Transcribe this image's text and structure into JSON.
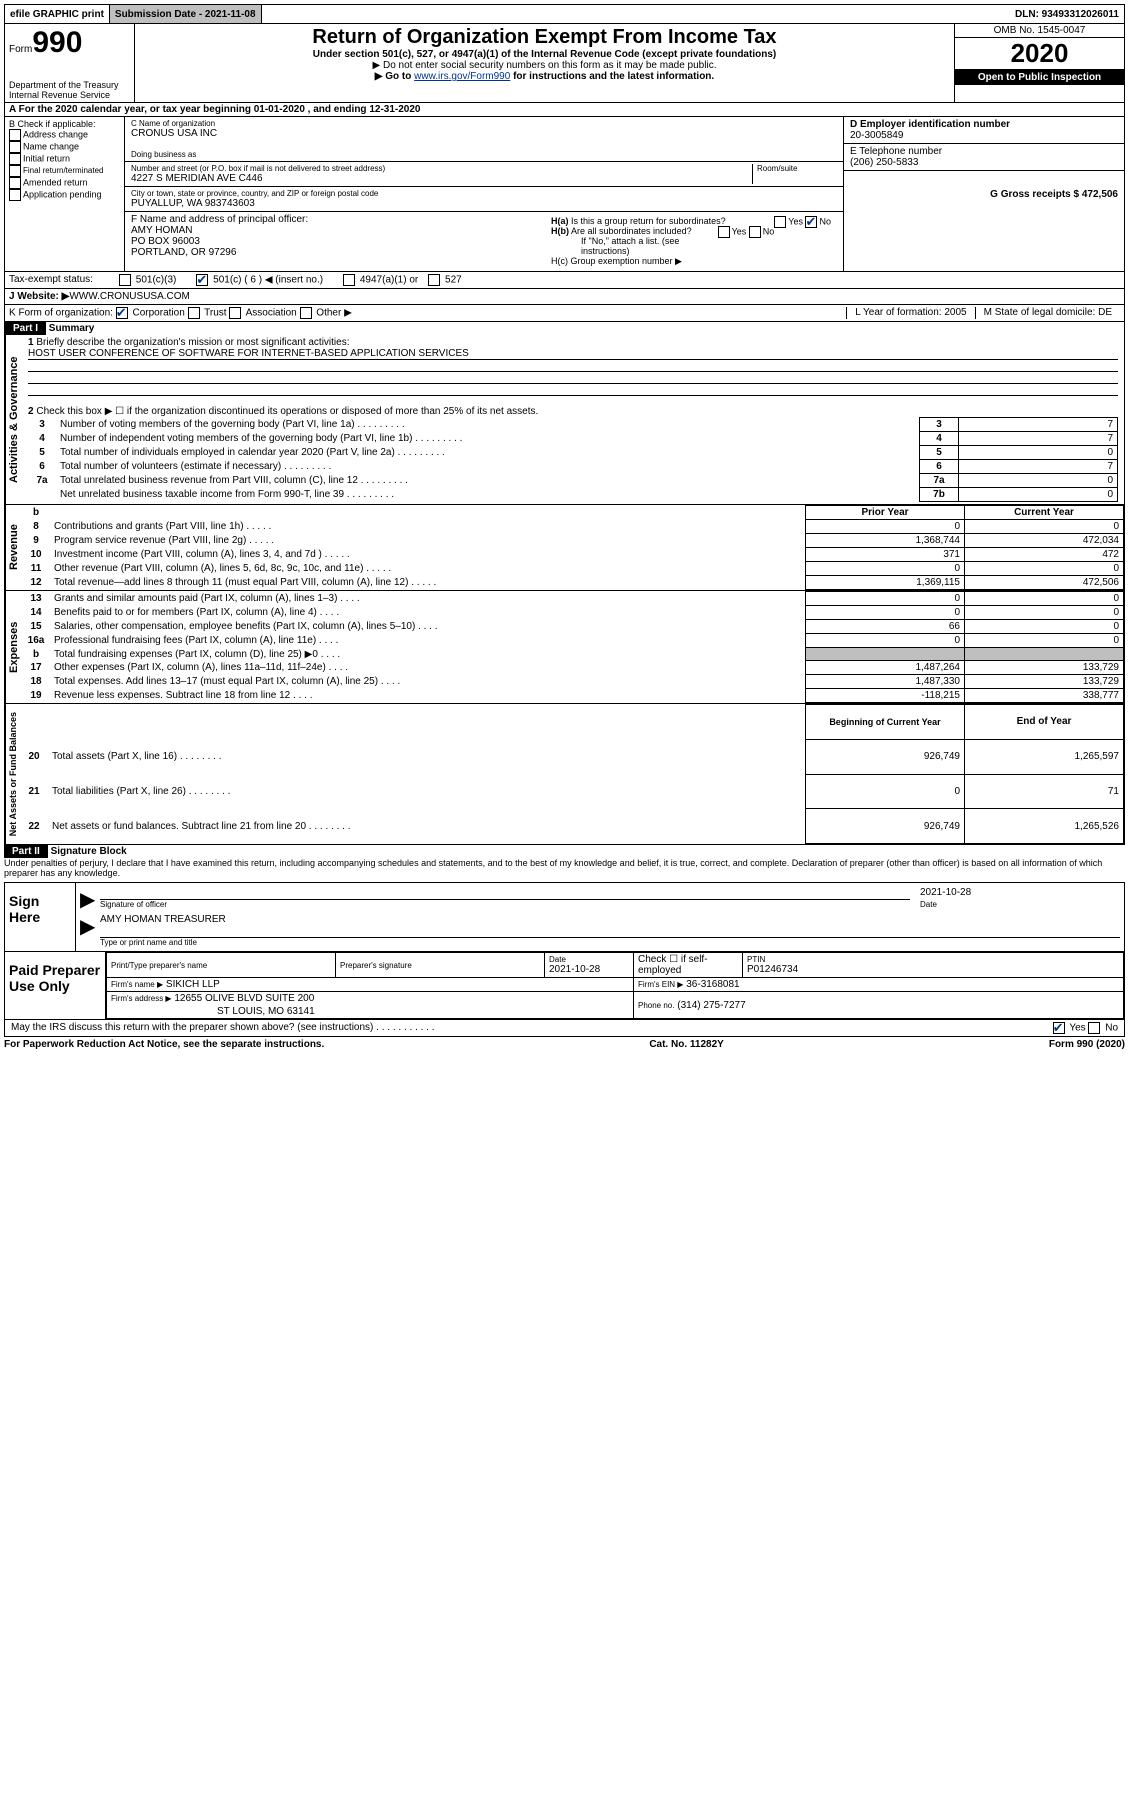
{
  "top_bar": {
    "efile": "efile GRAPHIC print",
    "sub_label": "Submission Date - 2021-11-08",
    "dln": "DLN: 93493312026011"
  },
  "header": {
    "form_label": "Form",
    "form_number": "990",
    "dept1": "Department of the Treasury",
    "dept2": "Internal Revenue Service",
    "title": "Return of Organization Exempt From Income Tax",
    "subtitle": "Under section 501(c), 527, or 4947(a)(1) of the Internal Revenue Code (except private foundations)",
    "note1": "▶ Do not enter social security numbers on this form as it may be made public.",
    "note2_pre": "▶ Go to ",
    "note2_link": "www.irs.gov/Form990",
    "note2_post": " for instructions and the latest information.",
    "omb": "OMB No. 1545-0047",
    "year": "2020",
    "open": "Open to Public Inspection"
  },
  "row_a": "A For the 2020 calendar year, or tax year beginning 01-01-2020    , and ending 12-31-2020",
  "col_b": {
    "label": "B Check if applicable:",
    "items": [
      "Address change",
      "Name change",
      "Initial return",
      "Final return/terminated",
      "Amended return",
      "Application pending"
    ]
  },
  "col_c": {
    "c_label": "C Name of organization",
    "c_name": "CRONUS USA INC",
    "dba_label": "Doing business as",
    "street_label": "Number and street (or P.O. box if mail is not delivered to street address)",
    "room_label": "Room/suite",
    "street": "4227 S MERIDIAN AVE C446",
    "city_label": "City or town, state or province, country, and ZIP or foreign postal code",
    "city": "PUYALLUP, WA  983743603",
    "f_label": "F Name and address of principal officer:",
    "f_name": "AMY HOMAN",
    "f_addr1": "PO BOX 96003",
    "f_addr2": "PORTLAND, OR  97296"
  },
  "col_d": {
    "d_label": "D Employer identification number",
    "d_val": "20-3005849",
    "e_label": "E Telephone number",
    "e_val": "(206) 250-5833",
    "g_label": "G Gross receipts $ 472,506",
    "ha_label": "H(a)  Is this a group return for subordinates?",
    "hb_label": "H(b)  Are all subordinates included?",
    "hb_note": "If \"No,\" attach a list. (see instructions)",
    "hc_label": "H(c)  Group exemption number ▶"
  },
  "tax_status": {
    "label": "Tax-exempt status:",
    "opt1": "501(c)(3)",
    "opt2": "501(c) ( 6 ) ◀ (insert no.)",
    "opt3": "4947(a)(1) or",
    "opt4": "527"
  },
  "website": {
    "label": "J   Website: ▶",
    "val": " WWW.CRONUSUSA.COM"
  },
  "row_k": {
    "label": "K Form of organization:",
    "opts": [
      "Corporation",
      "Trust",
      "Association",
      "Other ▶"
    ],
    "l_label": "L Year of formation: 2005",
    "m_label": "M State of legal domicile: DE"
  },
  "part1": {
    "header": "Part I",
    "title": "Summary",
    "q1_label": "1",
    "q1": "Briefly describe the organization's mission or most significant activities:",
    "q1_ans": "HOST USER CONFERENCE OF SOFTWARE FOR INTERNET-BASED APPLICATION SERVICES",
    "q2": "Check this box ▶ ☐  if the organization discontinued its operations or disposed of more than 25% of its net assets.",
    "rows_gov": [
      {
        "n": "3",
        "d": "Number of voting members of the governing body (Part VI, line 1a)",
        "s": "3",
        "v": "7"
      },
      {
        "n": "4",
        "d": "Number of independent voting members of the governing body (Part VI, line 1b)",
        "s": "4",
        "v": "7"
      },
      {
        "n": "5",
        "d": "Total number of individuals employed in calendar year 2020 (Part V, line 2a)",
        "s": "5",
        "v": "0"
      },
      {
        "n": "6",
        "d": "Total number of volunteers (estimate if necessary)",
        "s": "6",
        "v": "7"
      },
      {
        "n": "7a",
        "d": "Total unrelated business revenue from Part VIII, column (C), line 12",
        "s": "7a",
        "v": "0"
      },
      {
        "n": "",
        "d": "Net unrelated business taxable income from Form 990-T, line 39",
        "s": "7b",
        "v": "0"
      }
    ],
    "col_hdr_prior": "Prior Year",
    "col_hdr_curr": "Current Year",
    "rows_rev": [
      {
        "n": "8",
        "d": "Contributions and grants (Part VIII, line 1h)",
        "p": "0",
        "c": "0"
      },
      {
        "n": "9",
        "d": "Program service revenue (Part VIII, line 2g)",
        "p": "1,368,744",
        "c": "472,034"
      },
      {
        "n": "10",
        "d": "Investment income (Part VIII, column (A), lines 3, 4, and 7d )",
        "p": "371",
        "c": "472"
      },
      {
        "n": "11",
        "d": "Other revenue (Part VIII, column (A), lines 5, 6d, 8c, 9c, 10c, and 11e)",
        "p": "0",
        "c": "0"
      },
      {
        "n": "12",
        "d": "Total revenue—add lines 8 through 11 (must equal Part VIII, column (A), line 12)",
        "p": "1,369,115",
        "c": "472,506"
      }
    ],
    "rows_exp": [
      {
        "n": "13",
        "d": "Grants and similar amounts paid (Part IX, column (A), lines 1–3)",
        "p": "0",
        "c": "0"
      },
      {
        "n": "14",
        "d": "Benefits paid to or for members (Part IX, column (A), line 4)",
        "p": "0",
        "c": "0"
      },
      {
        "n": "15",
        "d": "Salaries, other compensation, employee benefits (Part IX, column (A), lines 5–10)",
        "p": "66",
        "c": "0"
      },
      {
        "n": "16a",
        "d": "Professional fundraising fees (Part IX, column (A), line 11e)",
        "p": "0",
        "c": "0"
      },
      {
        "n": "b",
        "d": "Total fundraising expenses (Part IX, column (D), line 25) ▶0",
        "p": "GRAY",
        "c": "GRAY"
      },
      {
        "n": "17",
        "d": "Other expenses (Part IX, column (A), lines 11a–11d, 11f–24e)",
        "p": "1,487,264",
        "c": "133,729"
      },
      {
        "n": "18",
        "d": "Total expenses. Add lines 13–17 (must equal Part IX, column (A), line 25)",
        "p": "1,487,330",
        "c": "133,729"
      },
      {
        "n": "19",
        "d": "Revenue less expenses. Subtract line 18 from line 12",
        "p": "-118,215",
        "c": "338,777"
      }
    ],
    "col_hdr_beg": "Beginning of Current Year",
    "col_hdr_end": "End of Year",
    "rows_net": [
      {
        "n": "20",
        "d": "Total assets (Part X, line 16)",
        "p": "926,749",
        "c": "1,265,597"
      },
      {
        "n": "21",
        "d": "Total liabilities (Part X, line 26)",
        "p": "0",
        "c": "71"
      },
      {
        "n": "22",
        "d": "Net assets or fund balances. Subtract line 21 from line 20",
        "p": "926,749",
        "c": "1,265,526"
      }
    ]
  },
  "part2": {
    "header": "Part II",
    "title": "Signature Block",
    "perjury": "Under penalties of perjury, I declare that I have examined this return, including accompanying schedules and statements, and to the best of my knowledge and belief, it is true, correct, and complete. Declaration of preparer (other than officer) is based on all information of which preparer has any knowledge."
  },
  "sign": {
    "left": "Sign Here",
    "sig_label": "Signature of officer",
    "date_label": "Date",
    "date_val": "2021-10-28",
    "name": "AMY HOMAN  TREASURER",
    "name_label": "Type or print name and title"
  },
  "paid": {
    "left": "Paid Preparer Use Only",
    "h1": "Print/Type preparer's name",
    "h2": "Preparer's signature",
    "h3": "Date",
    "h3v": "2021-10-28",
    "h4": "Check ☐  if self-employed",
    "h5": "PTIN",
    "h5v": "P01246734",
    "firm_label": "Firm's name    ▶",
    "firm": "SIKICH LLP",
    "ein_label": "Firm's EIN ▶",
    "ein": "36-3168081",
    "addr_label": "Firm's address ▶",
    "addr1": "12655 OLIVE BLVD SUITE 200",
    "addr2": "ST LOUIS, MO  63141",
    "phone_label": "Phone no.",
    "phone": "(314) 275-7277"
  },
  "discuss": "May the IRS discuss this return with the preparer shown above? (see instructions)",
  "footer": {
    "left": "For Paperwork Reduction Act Notice, see the separate instructions.",
    "mid": "Cat. No. 11282Y",
    "right": "Form 990 (2020)"
  },
  "labels_vert": {
    "gov": "Activities & Governance",
    "rev": "Revenue",
    "exp": "Expenses",
    "net": "Net Assets or Fund Balances"
  }
}
